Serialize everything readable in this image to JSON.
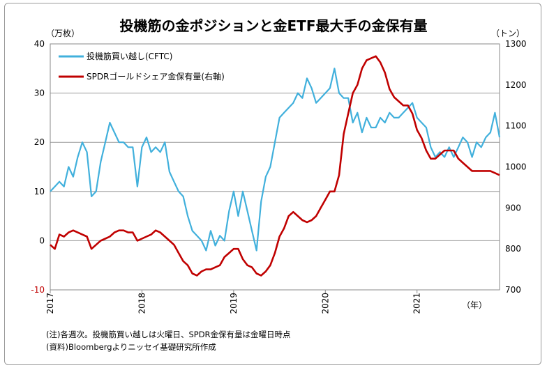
{
  "chart_data": {
    "type": "line",
    "title": "投機筋の金ポジションと金ETF最大手の金保有量",
    "left_unit": "（万枚）",
    "right_unit": "（トン）",
    "x_unit": "（年）",
    "left_axis": {
      "min": -10,
      "max": 40,
      "ticks": [
        "-10",
        "0",
        "10",
        "20",
        "30",
        "40"
      ]
    },
    "right_axis": {
      "min": 700,
      "max": 1300,
      "ticks": [
        "700",
        "800",
        "900",
        "1000",
        "1100",
        "1200",
        "1300"
      ]
    },
    "x_axis": {
      "min": 2017.0,
      "max": 2021.9,
      "ticks": [
        "2017",
        "2018",
        "2019",
        "2020",
        "2021"
      ]
    },
    "grid": true,
    "legend_position": "top-left",
    "series": [
      {
        "name": "投機筋買い越し(CFTC)",
        "axis": "left",
        "color": "#41b0dc",
        "x": [
          2017.0,
          2017.05,
          2017.1,
          2017.15,
          2017.2,
          2017.25,
          2017.3,
          2017.35,
          2017.4,
          2017.45,
          2017.5,
          2017.55,
          2017.6,
          2017.65,
          2017.7,
          2017.75,
          2017.8,
          2017.85,
          2017.9,
          2017.95,
          2018.0,
          2018.05,
          2018.1,
          2018.15,
          2018.2,
          2018.25,
          2018.3,
          2018.35,
          2018.4,
          2018.45,
          2018.5,
          2018.55,
          2018.6,
          2018.65,
          2018.7,
          2018.75,
          2018.8,
          2018.85,
          2018.9,
          2018.95,
          2019.0,
          2019.05,
          2019.1,
          2019.15,
          2019.2,
          2019.25,
          2019.3,
          2019.35,
          2019.4,
          2019.45,
          2019.5,
          2019.55,
          2019.6,
          2019.65,
          2019.7,
          2019.75,
          2019.8,
          2019.85,
          2019.9,
          2019.95,
          2020.0,
          2020.05,
          2020.1,
          2020.15,
          2020.2,
          2020.25,
          2020.3,
          2020.35,
          2020.4,
          2020.45,
          2020.5,
          2020.55,
          2020.6,
          2020.65,
          2020.7,
          2020.75,
          2020.8,
          2020.85,
          2020.9,
          2020.95,
          2021.0,
          2021.05,
          2021.1,
          2021.15,
          2021.2,
          2021.25,
          2021.3,
          2021.35,
          2021.4,
          2021.45,
          2021.5,
          2021.55,
          2021.6,
          2021.65,
          2021.7,
          2021.75,
          2021.8,
          2021.85,
          2021.9
        ],
        "values": [
          10,
          11,
          12,
          11,
          15,
          13,
          17,
          20,
          18,
          9,
          10,
          16,
          20,
          24,
          22,
          20,
          20,
          19,
          19,
          11,
          19,
          21,
          18,
          19,
          18,
          20,
          14,
          12,
          10,
          9,
          5,
          2,
          1,
          0,
          -2,
          2,
          -1,
          1,
          0,
          6,
          10,
          5,
          10,
          6,
          2,
          -2,
          8,
          13,
          15,
          20,
          25,
          26,
          27,
          28,
          30,
          29,
          33,
          31,
          28,
          29,
          30,
          31,
          35,
          30,
          29,
          29,
          24,
          26,
          22,
          25,
          23,
          23,
          25,
          24,
          26,
          25,
          25,
          26,
          27,
          28,
          25,
          24,
          23,
          19,
          17,
          18,
          17,
          19,
          17,
          19,
          21,
          20,
          17,
          20,
          19,
          21,
          22,
          26,
          21
        ]
      },
      {
        "name": "SPDRゴールドシェア金保有量(右軸)",
        "axis": "right",
        "color": "#c00000",
        "x": [
          2017.0,
          2017.05,
          2017.1,
          2017.15,
          2017.2,
          2017.25,
          2017.3,
          2017.35,
          2017.4,
          2017.45,
          2017.5,
          2017.55,
          2017.6,
          2017.65,
          2017.7,
          2017.75,
          2017.8,
          2017.85,
          2017.9,
          2017.95,
          2018.0,
          2018.05,
          2018.1,
          2018.15,
          2018.2,
          2018.25,
          2018.3,
          2018.35,
          2018.4,
          2018.45,
          2018.5,
          2018.55,
          2018.6,
          2018.65,
          2018.7,
          2018.75,
          2018.8,
          2018.85,
          2018.9,
          2018.95,
          2019.0,
          2019.05,
          2019.1,
          2019.15,
          2019.2,
          2019.25,
          2019.3,
          2019.35,
          2019.4,
          2019.45,
          2019.5,
          2019.55,
          2019.6,
          2019.65,
          2019.7,
          2019.75,
          2019.8,
          2019.85,
          2019.9,
          2019.95,
          2020.0,
          2020.05,
          2020.1,
          2020.15,
          2020.2,
          2020.25,
          2020.3,
          2020.35,
          2020.4,
          2020.45,
          2020.5,
          2020.55,
          2020.6,
          2020.65,
          2020.7,
          2020.75,
          2020.8,
          2020.85,
          2020.9,
          2020.95,
          2021.0,
          2021.05,
          2021.1,
          2021.15,
          2021.2,
          2021.25,
          2021.3,
          2021.35,
          2021.4,
          2021.45,
          2021.5,
          2021.55,
          2021.6,
          2021.65,
          2021.7,
          2021.75,
          2021.8,
          2021.85,
          2021.9
        ],
        "values": [
          810,
          800,
          835,
          830,
          840,
          845,
          840,
          835,
          830,
          800,
          810,
          820,
          825,
          830,
          840,
          845,
          845,
          840,
          840,
          820,
          825,
          830,
          835,
          845,
          840,
          830,
          820,
          810,
          790,
          770,
          760,
          740,
          735,
          745,
          750,
          750,
          755,
          760,
          780,
          790,
          800,
          800,
          775,
          760,
          755,
          740,
          735,
          745,
          760,
          790,
          830,
          850,
          880,
          890,
          880,
          870,
          865,
          870,
          880,
          900,
          920,
          940,
          940,
          980,
          1080,
          1130,
          1180,
          1200,
          1240,
          1260,
          1265,
          1270,
          1255,
          1230,
          1190,
          1170,
          1160,
          1150,
          1150,
          1130,
          1090,
          1070,
          1040,
          1020,
          1020,
          1030,
          1040,
          1040,
          1040,
          1020,
          1010,
          1000,
          990,
          990,
          990,
          990,
          990,
          985,
          980
        ]
      }
    ],
    "notes": [
      "(注)各週次。投機筋買い越しは火曜日、SPDR金保有量は金曜日時点",
      "(資料)Bloombergよりニッセイ基礎研究所作成"
    ]
  }
}
